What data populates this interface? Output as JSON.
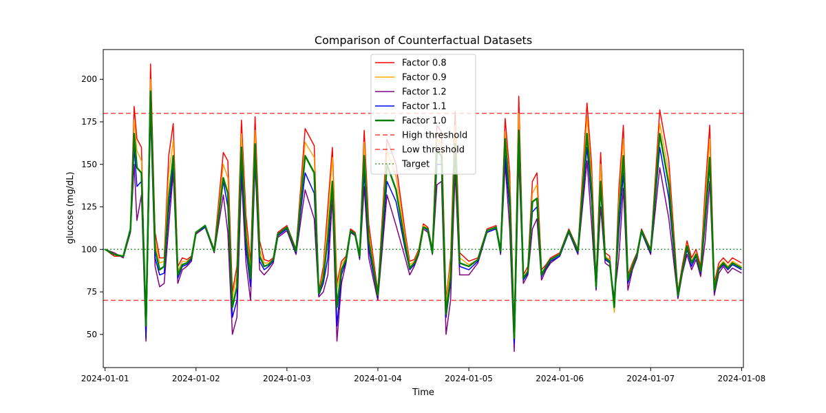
{
  "chart_data": {
    "type": "line",
    "title": "Comparison of Counterfactual Datasets",
    "xlabel": "Time",
    "ylabel": "glucose (mg/dL)",
    "xlim": [
      -0.02,
      7.02
    ],
    "ylim": [
      30.5,
      217.5
    ],
    "x_ticks": [
      {
        "value": 0,
        "label": "2024-01-01"
      },
      {
        "value": 1,
        "label": "2024-01-02"
      },
      {
        "value": 2,
        "label": "2024-01-03"
      },
      {
        "value": 3,
        "label": "2024-01-04"
      },
      {
        "value": 4,
        "label": "2024-01-05"
      },
      {
        "value": 5,
        "label": "2024-01-06"
      },
      {
        "value": 6,
        "label": "2024-01-07"
      },
      {
        "value": 7,
        "label": "2024-01-08"
      }
    ],
    "y_ticks": [
      50,
      75,
      100,
      125,
      150,
      175,
      200
    ],
    "grid": false,
    "legend_position": "top-center",
    "baseline_x": [
      0,
      0.1,
      0.2,
      0.28,
      0.32,
      0.35,
      0.4,
      0.45,
      0.5,
      0.55,
      0.6,
      0.65,
      0.7,
      0.75,
      0.8,
      0.85,
      0.9,
      0.95,
      1.0,
      1.1,
      1.2,
      1.3,
      1.35,
      1.4,
      1.45,
      1.5,
      1.55,
      1.6,
      1.65,
      1.7,
      1.75,
      1.8,
      1.85,
      1.9,
      2.0,
      2.1,
      2.2,
      2.3,
      2.35,
      2.4,
      2.45,
      2.5,
      2.55,
      2.6,
      2.65,
      2.7,
      2.75,
      2.8,
      2.85,
      2.9,
      3.0,
      3.1,
      3.2,
      3.3,
      3.35,
      3.4,
      3.45,
      3.5,
      3.55,
      3.6,
      3.65,
      3.7,
      3.75,
      3.8,
      3.85,
      3.9,
      4.0,
      4.1,
      4.2,
      4.3,
      4.35,
      4.4,
      4.45,
      4.5,
      4.55,
      4.6,
      4.65,
      4.7,
      4.75,
      4.8,
      4.85,
      4.9,
      5.0,
      5.1,
      5.2,
      5.3,
      5.35,
      5.4,
      5.45,
      5.5,
      5.55,
      5.6,
      5.65,
      5.7,
      5.75,
      5.8,
      5.85,
      5.9,
      6.0,
      6.1,
      6.2,
      6.3,
      6.35,
      6.4,
      6.45,
      6.5,
      6.55,
      6.6,
      6.65,
      6.7,
      6.75,
      6.8,
      6.85,
      6.9,
      7.0
    ],
    "series": [
      {
        "name": "Factor 0.8",
        "color": "#ff0000",
        "width": 1.5,
        "values": [
          100,
          96,
          96,
          112,
          184,
          165,
          160,
          47,
          209,
          110,
          95,
          95,
          155,
          174,
          90,
          95,
          94,
          96,
          110,
          114,
          100,
          157,
          152,
          75,
          90,
          176,
          120,
          92,
          178,
          105,
          94,
          93,
          95,
          110,
          114,
          100,
          171,
          161,
          75,
          90,
          125,
          160,
          80,
          93,
          96,
          112,
          110,
          97,
          170,
          115,
          75,
          165,
          150,
          110,
          93,
          94,
          100,
          115,
          113,
          100,
          173,
          169,
          70,
          95,
          181,
          98,
          93,
          95,
          112,
          114,
          100,
          177,
          145,
          52,
          190,
          85,
          90,
          140,
          145,
          88,
          91,
          95,
          98,
          112,
          100,
          186,
          150,
          80,
          157,
          98,
          96,
          65,
          135,
          173,
          85,
          92,
          98,
          112,
          100,
          182,
          152,
          75,
          91,
          105,
          95,
          100,
          90,
          135,
          173,
          80,
          92,
          95,
          92,
          95,
          92
        ]
      },
      {
        "name": "Factor 0.9",
        "color": "#ffa500",
        "width": 1.5,
        "values": [
          100,
          97,
          96,
          112,
          176,
          158,
          152,
          50,
          200,
          105,
          92,
          93,
          144,
          164,
          87,
          93,
          93,
          95,
          110,
          114,
          99,
          150,
          142,
          71,
          85,
          168,
          114,
          88,
          170,
          100,
          92,
          92,
          94,
          109,
          113,
          99,
          163,
          154,
          73,
          87,
          118,
          154,
          77,
          91,
          95,
          111,
          109,
          96,
          163,
          110,
          73,
          158,
          143,
          107,
          91,
          93,
          99,
          114,
          112,
          99,
          165,
          162,
          68,
          92,
          173,
          95,
          91,
          94,
          111,
          113,
          99,
          169,
          138,
          50,
          180,
          83,
          88,
          133,
          138,
          86,
          90,
          94,
          97,
          111,
          99,
          178,
          143,
          78,
          150,
          96,
          94,
          63,
          128,
          165,
          83,
          91,
          97,
          111,
          99,
          174,
          145,
          73,
          89,
          103,
          93,
          98,
          88,
          128,
          165,
          78,
          90,
          93,
          90,
          93,
          90
        ]
      },
      {
        "name": "Factor 1.2",
        "color": "#800080",
        "width": 1.5,
        "values": [
          100,
          98,
          95,
          110,
          150,
          117,
          132,
          46,
          180,
          90,
          78,
          80,
          113,
          145,
          80,
          88,
          90,
          93,
          109,
          113,
          98,
          132,
          110,
          50,
          60,
          143,
          92,
          70,
          150,
          88,
          85,
          88,
          92,
          107,
          111,
          97,
          135,
          118,
          72,
          75,
          85,
          130,
          46,
          80,
          92,
          110,
          108,
          94,
          137,
          95,
          70,
          132,
          114,
          95,
          85,
          90,
          97,
          112,
          110,
          97,
          138,
          140,
          50,
          70,
          145,
          85,
          85,
          92,
          110,
          112,
          97,
          150,
          112,
          40,
          153,
          80,
          85,
          112,
          118,
          82,
          88,
          92,
          96,
          110,
          97,
          152,
          115,
          76,
          125,
          92,
          90,
          72,
          95,
          136,
          76,
          88,
          95,
          110,
          97,
          148,
          118,
          71,
          86,
          97,
          88,
          94,
          84,
          105,
          140,
          73,
          86,
          90,
          86,
          89,
          86
        ]
      },
      {
        "name": "Factor 1.1",
        "color": "#0000ff",
        "width": 1.5,
        "values": [
          100,
          97,
          96,
          111,
          160,
          137,
          140,
          48,
          185,
          95,
          85,
          86,
          122,
          150,
          83,
          90,
          91,
          94,
          110,
          113,
          99,
          140,
          125,
          60,
          70,
          150,
          100,
          78,
          155,
          93,
          88,
          90,
          93,
          108,
          112,
          98,
          145,
          133,
          73,
          80,
          95,
          140,
          55,
          85,
          93,
          110,
          109,
          95,
          145,
          100,
          72,
          140,
          128,
          100,
          88,
          91,
          98,
          113,
          111,
          98,
          150,
          150,
          60,
          80,
          158,
          90,
          88,
          93,
          110,
          112,
          98,
          155,
          123,
          45,
          165,
          82,
          86,
          122,
          125,
          84,
          89,
          93,
          96,
          110,
          98,
          160,
          128,
          77,
          135,
          94,
          92,
          68,
          110,
          145,
          80,
          89,
          96,
          110,
          98,
          160,
          130,
          72,
          87,
          100,
          90,
          96,
          86,
          115,
          150,
          75,
          88,
          91,
          88,
          91,
          88
        ]
      },
      {
        "name": "Factor 1.0",
        "color": "#008000",
        "width": 2.5,
        "values": [
          100,
          97,
          96,
          112,
          168,
          148,
          145,
          55,
          193,
          100,
          88,
          90,
          130,
          155,
          85,
          91,
          92,
          95,
          110,
          114,
          99,
          142,
          133,
          66,
          78,
          160,
          107,
          83,
          162,
          96,
          90,
          91,
          94,
          109,
          113,
          99,
          155,
          145,
          74,
          83,
          107,
          140,
          66,
          88,
          94,
          111,
          109,
          96,
          155,
          105,
          73,
          150,
          135,
          103,
          89,
          92,
          98,
          113,
          112,
          98,
          158,
          155,
          62,
          84,
          162,
          92,
          90,
          94,
          111,
          113,
          99,
          165,
          130,
          48,
          170,
          83,
          87,
          128,
          130,
          85,
          90,
          94,
          97,
          111,
          99,
          168,
          135,
          78,
          140,
          95,
          93,
          66,
          120,
          155,
          82,
          90,
          97,
          111,
          99,
          168,
          138,
          73,
          88,
          102,
          92,
          97,
          87,
          120,
          154,
          76,
          89,
          92,
          89,
          92,
          89
        ]
      }
    ],
    "reference_lines": [
      {
        "name": "High threshold",
        "y": 180,
        "color": "#ff0000",
        "style": "dashed"
      },
      {
        "name": "Low threshold",
        "y": 70,
        "color": "#ff0000",
        "style": "dashed"
      },
      {
        "name": "Target",
        "y": 100,
        "color": "#008000",
        "style": "dotted"
      }
    ]
  }
}
